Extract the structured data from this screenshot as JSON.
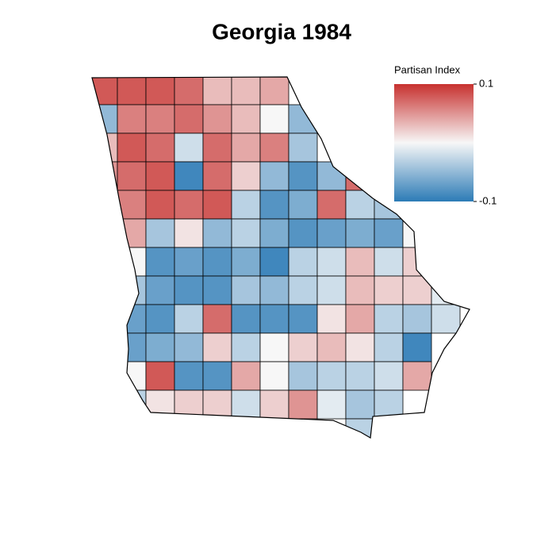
{
  "chart_data": {
    "type": "choropleth",
    "title": "Georgia 1984",
    "legend_title": "Partisan Index",
    "colors": [
      "#2c7bb6",
      "#f7f7f7",
      "#c7312f"
    ],
    "clim": [
      -0.1,
      0.1
    ],
    "cticks": [
      0.1,
      -0.1
    ],
    "values": [
      [
        0.08,
        0.08,
        0.08,
        0.07,
        0.03,
        0.03,
        0.04,
        null,
        null,
        null,
        null,
        null,
        null,
        null
      ],
      [
        -0.05,
        0.06,
        0.06,
        0.07,
        0.05,
        0.03,
        0,
        -0.05,
        null,
        null,
        null,
        null,
        null,
        null
      ],
      [
        0.03,
        0.08,
        0.07,
        -0.02,
        0.07,
        0.04,
        0.06,
        -0.04,
        null,
        null,
        null,
        null,
        null,
        null
      ],
      [
        0.05,
        0.07,
        0.08,
        -0.09,
        0.07,
        0.02,
        -0.05,
        -0.08,
        -0.05,
        0.07,
        null,
        null,
        null,
        null
      ],
      [
        null,
        0.06,
        0.08,
        0.07,
        0.08,
        -0.03,
        -0.08,
        -0.06,
        0.07,
        -0.03,
        -0.04,
        null,
        null,
        null
      ],
      [
        null,
        0.04,
        -0.04,
        0.01,
        -0.05,
        -0.03,
        -0.06,
        -0.08,
        -0.07,
        -0.06,
        -0.07,
        0,
        null,
        null
      ],
      [
        null,
        0,
        -0.08,
        -0.07,
        -0.08,
        -0.06,
        -0.09,
        -0.03,
        -0.02,
        0.03,
        -0.02,
        0.02,
        null,
        null
      ],
      [
        null,
        -0.04,
        -0.07,
        -0.08,
        -0.08,
        -0.04,
        -0.05,
        -0.03,
        -0.02,
        0.03,
        0.02,
        0.02,
        -0.01,
        null
      ],
      [
        null,
        -0.07,
        -0.08,
        -0.03,
        0.07,
        -0.08,
        -0.08,
        -0.08,
        0.01,
        0.04,
        -0.03,
        -0.04,
        -0.02,
        null
      ],
      [
        null,
        -0.07,
        -0.06,
        -0.05,
        0.02,
        -0.03,
        0,
        0.02,
        0.03,
        0.01,
        -0.03,
        -0.09,
        null,
        null
      ],
      [
        null,
        0,
        0.08,
        -0.08,
        -0.08,
        0.04,
        0,
        -0.04,
        -0.03,
        -0.03,
        -0.02,
        0.04,
        null,
        null
      ],
      [
        null,
        -0.03,
        0.01,
        0.02,
        0.02,
        -0.02,
        0.02,
        0.05,
        -0.01,
        -0.04,
        -0.03,
        null,
        null,
        null
      ],
      [
        null,
        null,
        null,
        null,
        null,
        null,
        null,
        null,
        null,
        -0.03,
        null,
        null,
        null,
        null
      ]
    ]
  }
}
